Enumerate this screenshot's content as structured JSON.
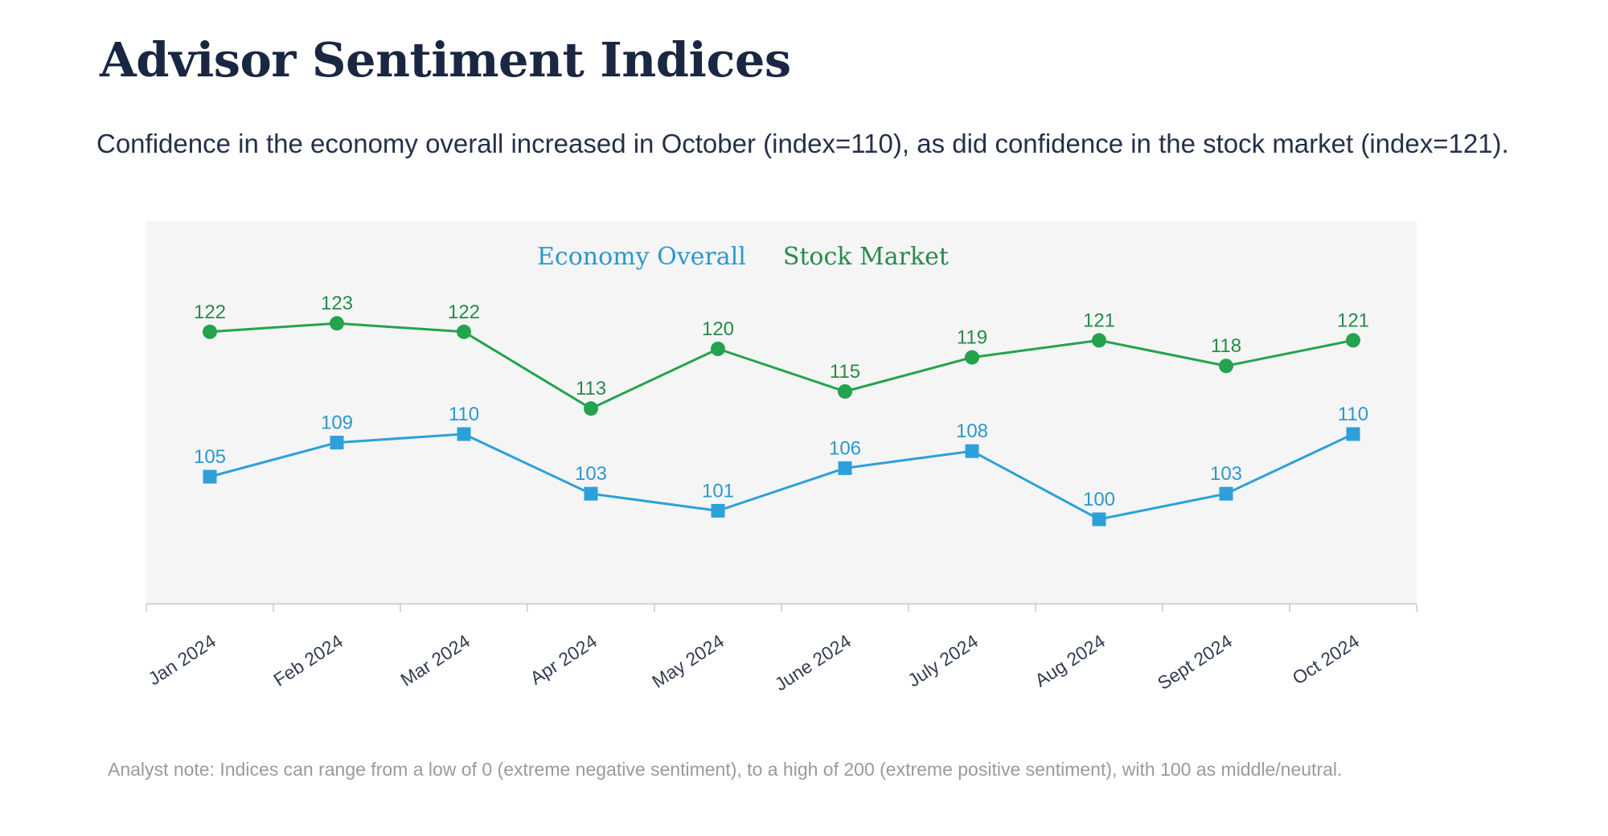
{
  "page": {
    "title": "Advisor Sentiment Indices",
    "subtitle": "Confidence in the economy overall increased in October (index=110), as did confidence in the stock market (index=121).",
    "footnote": "Analyst note: Indices can range from a low of 0 (extreme negative sentiment), to a high of 200 (extreme positive sentiment), with 100 as middle/neutral."
  },
  "palette": {
    "title_navy": "#1a2742",
    "subtitle_navy": "#25304a",
    "axis_label_navy": "#323c52",
    "chart_background": "#f5f5f5",
    "axis_line_gray": "#c9c9c9",
    "footnote_gray": "#9a9a9a",
    "economy_blue": "#2da0da",
    "economy_blue_text": "#2d97cd",
    "stock_green": "#23a34d",
    "stock_green_text": "#268c49"
  },
  "chart_data": {
    "type": "line",
    "title": "",
    "xlabel": "",
    "ylabel": "",
    "categories": [
      "Jan 2024",
      "Feb 2024",
      "Mar 2024",
      "Apr 2024",
      "May 2024",
      "June 2024",
      "July 2024",
      "Aug 2024",
      "Sept 2024",
      "Oct 2024"
    ],
    "series": [
      {
        "name": "Economy Overall",
        "values": [
          105,
          109,
          110,
          103,
          101,
          106,
          108,
          100,
          103,
          110
        ],
        "color": "#2da0da",
        "text_color": "#2d97cd",
        "marker": "square"
      },
      {
        "name": "Stock Market",
        "values": [
          122,
          123,
          122,
          113,
          120,
          115,
          119,
          121,
          118,
          121
        ],
        "color": "#23a34d",
        "text_color": "#268c49",
        "marker": "circle"
      }
    ],
    "ylim": [
      90,
      135
    ],
    "grid": false,
    "legend_position": "top-center",
    "data_labels": true
  }
}
